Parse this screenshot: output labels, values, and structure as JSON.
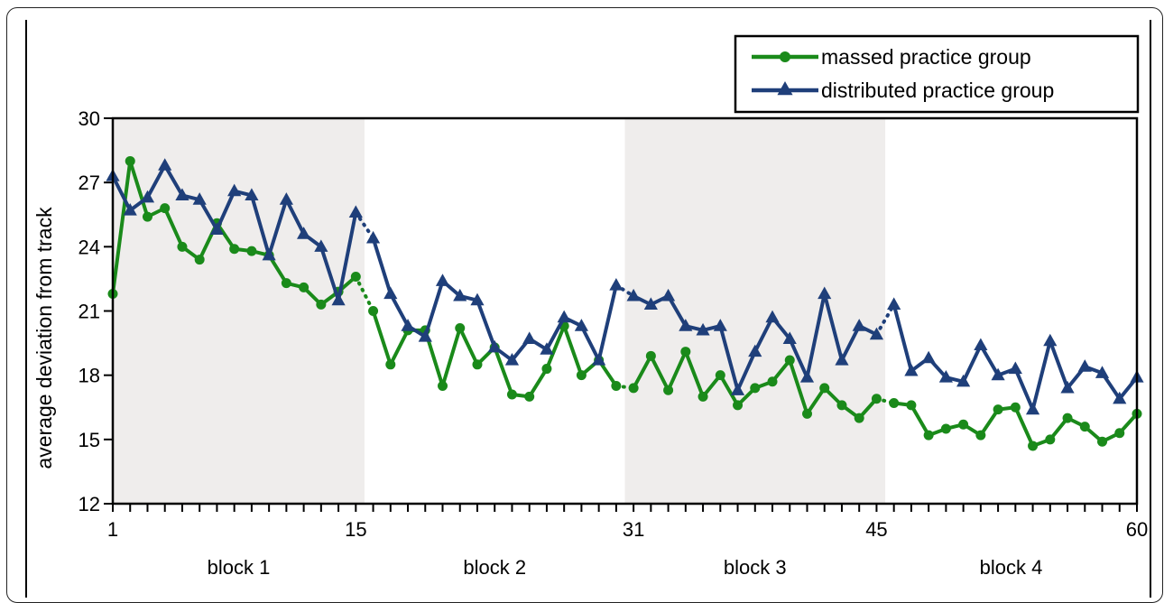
{
  "chart_data": {
    "type": "line",
    "ylabel": "average deviation from track",
    "xlabel": "",
    "ylim": [
      12,
      30
    ],
    "xlim": [
      1,
      60
    ],
    "y_ticks": [
      "12",
      "15",
      "18",
      "21",
      "24",
      "27",
      "30"
    ],
    "x_tick_labels": [
      {
        "x": 1,
        "label": "1"
      },
      {
        "x": 15,
        "label": "15"
      },
      {
        "x": 31,
        "label": "31"
      },
      {
        "x": 45,
        "label": "45"
      },
      {
        "x": 60,
        "label": "60"
      }
    ],
    "blocks": [
      {
        "label": "block 1",
        "from": 1,
        "to": 15,
        "shaded": true
      },
      {
        "label": "block 2",
        "from": 16,
        "to": 30,
        "shaded": false
      },
      {
        "label": "block 3",
        "from": 31,
        "to": 45,
        "shaded": true
      },
      {
        "label": "block 4",
        "from": 46,
        "to": 60,
        "shaded": false
      }
    ],
    "grid": false,
    "legend_position": "top-right",
    "series": [
      {
        "name": "massed practice group",
        "color": "#1a8a1a",
        "marker": "circle",
        "values": [
          21.8,
          28.0,
          25.4,
          25.8,
          24.0,
          23.4,
          25.1,
          23.9,
          23.8,
          23.6,
          22.3,
          22.1,
          21.3,
          21.9,
          22.6,
          21.0,
          18.5,
          20.1,
          20.1,
          17.5,
          20.2,
          18.5,
          19.3,
          17.1,
          17.0,
          18.3,
          20.3,
          18.0,
          18.7,
          17.5,
          17.4,
          18.9,
          17.3,
          19.1,
          17.0,
          18.0,
          16.6,
          17.4,
          17.7,
          18.7,
          16.2,
          17.4,
          16.6,
          16.0,
          16.9,
          16.7,
          16.6,
          15.2,
          15.5,
          15.7,
          15.2,
          16.4,
          16.5,
          14.7,
          15.0,
          16.0,
          15.6,
          14.9,
          15.3,
          16.2
        ]
      },
      {
        "name": "distributed practice group",
        "color": "#1f3f7a",
        "marker": "triangle",
        "values": [
          27.3,
          25.7,
          26.3,
          27.8,
          26.4,
          26.2,
          24.8,
          26.6,
          26.4,
          23.6,
          26.2,
          24.6,
          24.0,
          21.5,
          25.6,
          24.4,
          21.8,
          20.3,
          19.8,
          22.4,
          21.7,
          21.5,
          19.3,
          18.7,
          19.7,
          19.2,
          20.7,
          20.3,
          18.7,
          22.2,
          21.7,
          21.3,
          21.7,
          20.3,
          20.1,
          20.3,
          17.3,
          19.1,
          20.7,
          19.7,
          17.9,
          21.8,
          18.7,
          20.3,
          19.9,
          21.3,
          18.2,
          18.8,
          17.9,
          17.7,
          19.4,
          18.0,
          18.3,
          16.4,
          19.6,
          17.4,
          18.4,
          18.1,
          16.9,
          17.9
        ]
      }
    ]
  }
}
